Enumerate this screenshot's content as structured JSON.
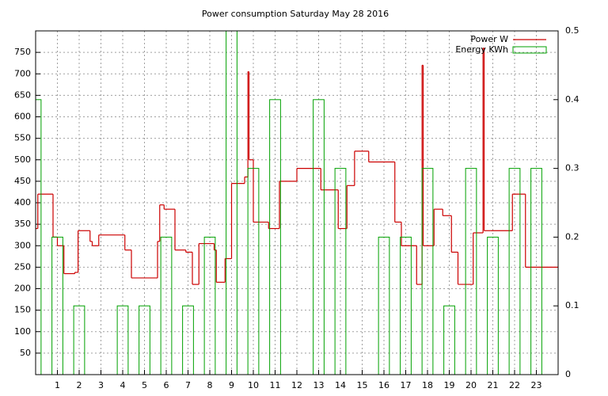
{
  "chart_data": {
    "type": "line",
    "title": "Power consumption Saturday May 28 2016",
    "xlim": [
      0,
      24
    ],
    "xticks": [
      1,
      2,
      3,
      4,
      5,
      6,
      7,
      8,
      9,
      10,
      11,
      12,
      13,
      14,
      15,
      16,
      17,
      18,
      19,
      20,
      21,
      22,
      23
    ],
    "ylim": [
      0,
      800
    ],
    "yticks": [
      50,
      100,
      150,
      200,
      250,
      300,
      350,
      400,
      450,
      500,
      550,
      600,
      650,
      700,
      750
    ],
    "y2lim": [
      0,
      0.5
    ],
    "y2ticks": [
      0,
      0.1,
      0.2,
      0.3,
      0.4,
      0.5
    ],
    "grid": true,
    "legend": "top-right",
    "series": [
      {
        "name": "Power W",
        "color": "#cc0000",
        "style": "steps",
        "x": [
          0,
          0.1,
          0.8,
          1.0,
          1.3,
          1.8,
          1.95,
          2.5,
          2.6,
          2.9,
          4.1,
          4.4,
          5.6,
          5.7,
          5.9,
          6.4,
          6.9,
          7.2,
          7.5,
          8.2,
          8.3,
          8.7,
          9.0,
          9.6,
          9.75,
          9.8,
          10.0,
          10.7,
          11.2,
          12.0,
          13.1,
          13.9,
          14.3,
          14.65,
          15.3,
          16.5,
          16.8,
          17.5,
          17.75,
          17.8,
          18.3,
          18.7,
          19.1,
          19.4,
          20.1,
          20.55,
          20.6,
          20.9,
          21.9,
          22.5,
          24
        ],
        "values": [
          340,
          420,
          320,
          300,
          235,
          238,
          335,
          310,
          300,
          325,
          290,
          225,
          310,
          395,
          385,
          290,
          285,
          210,
          305,
          290,
          215,
          270,
          445,
          460,
          705,
          500,
          355,
          340,
          450,
          480,
          430,
          340,
          440,
          520,
          495,
          355,
          300,
          210,
          720,
          300,
          385,
          370,
          285,
          210,
          330,
          760,
          335,
          335,
          420,
          250,
          250
        ]
      },
      {
        "name": "Energy KWh",
        "color": "#00a000",
        "axis": "y2",
        "style": "boxes",
        "x": [
          0,
          1,
          2,
          3,
          4,
          5,
          6,
          7,
          8,
          9,
          10,
          11,
          12,
          13,
          14,
          15,
          16,
          17,
          18,
          19,
          20,
          21,
          22,
          23
        ],
        "values": [
          0.4,
          0.2,
          0.1,
          0,
          0.1,
          0.1,
          0.2,
          0.1,
          0.2,
          0.5,
          0.3,
          0.4,
          0,
          0.4,
          0.3,
          0,
          0.2,
          0.2,
          0.3,
          0.1,
          0.3,
          0.2,
          0.3,
          0.3
        ]
      }
    ]
  }
}
